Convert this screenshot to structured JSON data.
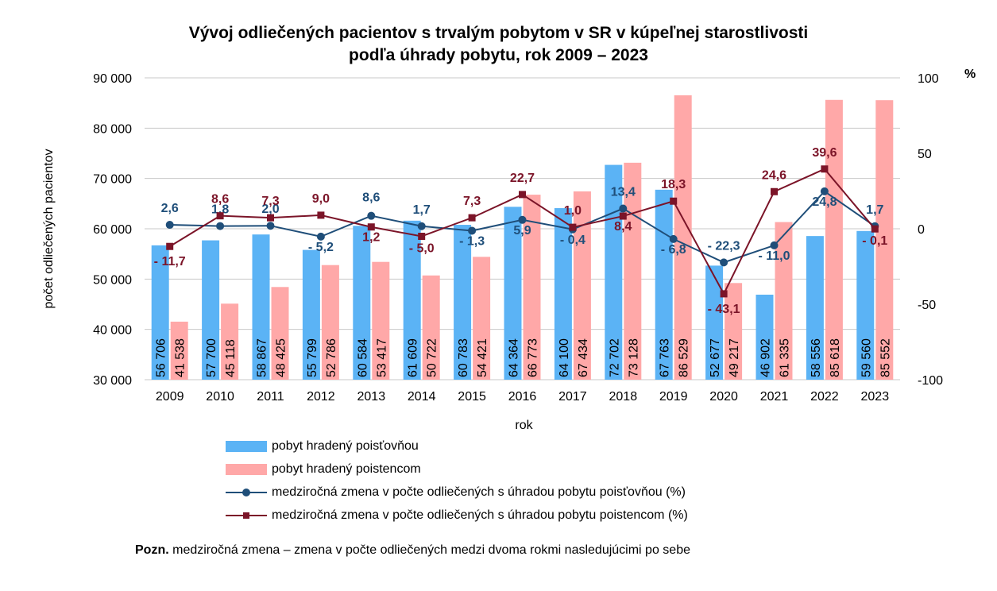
{
  "title_line1": "Vývoj odliečených pacientov s trvalým pobytom v SR v kúpeľnej starostlivosti",
  "title_line2": "podľa úhrady pobytu, rok 2009 – 2023",
  "note_label": "Pozn.",
  "note_text": " medziročná zmena – zmena v počte odliečených medzi dvoma rokmi nasledujúcimi po sebe",
  "colors": {
    "bar1": "#5bb3f5",
    "bar2": "#ffa8a8",
    "line1": "#1f4e79",
    "line2": "#7b1428"
  },
  "legend": [
    "pobyt hradený poisťovňou",
    "pobyt hradený poistencom",
    "medziročná zmena v počte odliečených s úhradou pobytu poisťovňou (%)",
    "medziročná zmena v počte odliečených s úhradou pobytu poistencom (%)"
  ],
  "chart_data": {
    "type": "bar",
    "title": "Vývoj odliečených pacientov s trvalým pobytom v SR v kúpeľnej starostlivosti podľa úhrady pobytu, rok 2009 – 2023",
    "xlabel": "rok",
    "ylabel": "počet odliečených pacientov",
    "y2label": "%",
    "ylim": [
      30000,
      90000
    ],
    "y2lim": [
      -100,
      100
    ],
    "yticks": [
      "30 000",
      "40 000",
      "50 000",
      "60 000",
      "70 000",
      "80 000",
      "90 000"
    ],
    "y2ticks": [
      "-100",
      "-50",
      "0",
      "50",
      "100"
    ],
    "grid": true,
    "legend_position": "bottom",
    "categories": [
      "2009",
      "2010",
      "2011",
      "2012",
      "2013",
      "2014",
      "2015",
      "2016",
      "2017",
      "2018",
      "2019",
      "2020",
      "2021",
      "2022",
      "2023"
    ],
    "series": [
      {
        "name": "pobyt hradený poisťovňou",
        "kind": "bar",
        "axis": "left",
        "values": [
          56706,
          57700,
          58867,
          55799,
          60584,
          61609,
          60783,
          64364,
          64100,
          72702,
          67763,
          52677,
          46902,
          58556,
          59560
        ],
        "labels": [
          "56 706",
          "57 700",
          "58 867",
          "55 799",
          "60 584",
          "61 609",
          "60 783",
          "64 364",
          "64 100",
          "72 702",
          "67 763",
          "52 677",
          "46 902",
          "58 556",
          "59 560"
        ]
      },
      {
        "name": "pobyt hradený poistencom",
        "kind": "bar",
        "axis": "left",
        "values": [
          41538,
          45118,
          48425,
          52786,
          53417,
          50722,
          54421,
          66773,
          67434,
          73128,
          86529,
          49217,
          61335,
          85618,
          85552
        ],
        "labels": [
          "41 538",
          "45 118",
          "48 425",
          "52 786",
          "53 417",
          "50 722",
          "54 421",
          "66 773",
          "67 434",
          "73 128",
          "86 529",
          "49 217",
          "61 335",
          "85 618",
          "85 552"
        ]
      },
      {
        "name": "medziročná zmena v počte odliečených s úhradou pobytu poisťovňou (%)",
        "kind": "line",
        "axis": "right",
        "values": [
          2.6,
          1.8,
          2.0,
          -5.2,
          8.6,
          1.7,
          -1.3,
          5.9,
          -0.4,
          13.4,
          -6.8,
          -22.3,
          -11.0,
          24.8,
          1.7
        ],
        "labels": [
          "2,6",
          "1,8",
          "2,0",
          "- 5,2",
          "8,6",
          "1,7",
          "- 1,3",
          "5,9",
          "- 0,4",
          "13,4",
          "- 6,8",
          "- 22,3",
          "- 11,0",
          "24,8",
          "1,7"
        ]
      },
      {
        "name": "medziročná zmena v počte odliečených s úhradou pobytu poistencom (%)",
        "kind": "line",
        "axis": "right",
        "values": [
          -11.7,
          8.6,
          7.3,
          9.0,
          1.2,
          -5.0,
          7.3,
          22.7,
          1.0,
          8.4,
          18.3,
          -43.1,
          24.6,
          39.6,
          -0.1
        ],
        "labels": [
          "- 11,7",
          "8,6",
          "7,3",
          "9,0",
          "1,2",
          "- 5,0",
          "7,3",
          "22,7",
          "1,0",
          "8,4",
          "18,3",
          "- 43,1",
          "24,6",
          "39,6",
          "- 0,1"
        ]
      }
    ]
  }
}
